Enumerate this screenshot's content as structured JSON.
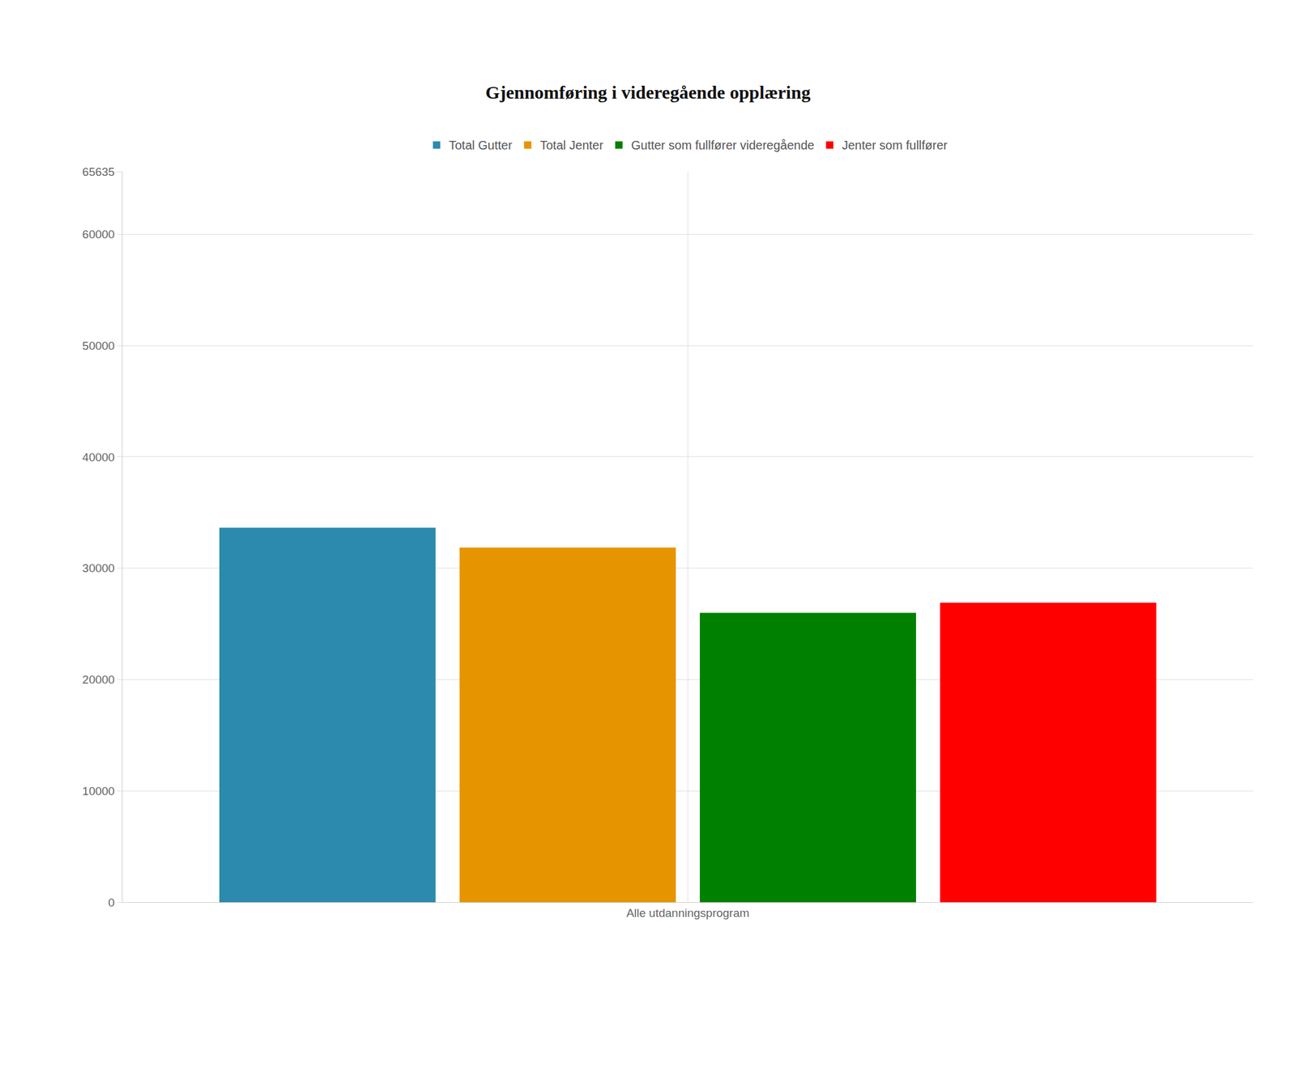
{
  "chart_data": {
    "type": "bar",
    "title": "Gjennomføring i videregående opplæring",
    "categories": [
      "Alle utdanningsprogram"
    ],
    "series": [
      {
        "name": "Total Gutter",
        "color": "#2b8aad",
        "values": [
          33640
        ]
      },
      {
        "name": "Total Jenter",
        "color": "#e69500",
        "values": [
          31849
        ]
      },
      {
        "name": "Gutter som fullfører videregående",
        "color": "#008000",
        "values": [
          26000
        ]
      },
      {
        "name": "Jenter som fullfører",
        "color": "#ff0000",
        "values": [
          26900
        ]
      }
    ],
    "ylim": [
      0,
      65635
    ],
    "yticks": [
      0,
      10000,
      20000,
      30000,
      40000,
      50000,
      60000,
      65635
    ],
    "grid": true,
    "legend": "top"
  }
}
